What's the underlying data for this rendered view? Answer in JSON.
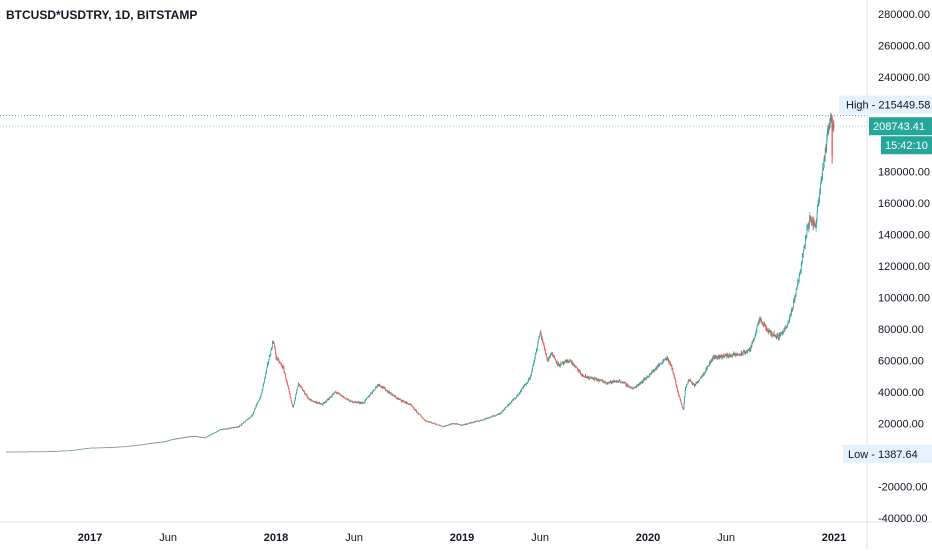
{
  "chart_data": {
    "type": "candlestick",
    "title": "BTCUSD*USDTRY, 1D, BITSTAMP",
    "y_axis": {
      "ticks": [
        "-40000.00",
        "-20000.00",
        "20000.00",
        "40000.00",
        "60000.00",
        "80000.00",
        "100000.00",
        "120000.00",
        "140000.00",
        "160000.00",
        "180000.00",
        "240000.00",
        "260000.00",
        "280000.00"
      ],
      "tick_values": [
        -40000,
        -20000,
        20000,
        40000,
        60000,
        80000,
        100000,
        120000,
        140000,
        160000,
        180000,
        240000,
        260000,
        280000
      ],
      "range": [
        -40000,
        285000
      ]
    },
    "x_axis": {
      "labels": [
        "2017",
        "Jun",
        "2018",
        "Jun",
        "2019",
        "Jun",
        "2020",
        "Jun",
        "2021"
      ],
      "label_years": [
        2017.0,
        2017.42,
        2018.0,
        2018.42,
        2019.0,
        2019.42,
        2020.0,
        2020.42,
        2021.0
      ],
      "range": [
        2016.55,
        2021.1
      ]
    },
    "price_series": {
      "x": [
        2016.55,
        2016.8,
        2016.9,
        2017.0,
        2017.1,
        2017.2,
        2017.3,
        2017.4,
        2017.45,
        2017.55,
        2017.62,
        2017.7,
        2017.8,
        2017.87,
        2017.92,
        2017.96,
        2017.985,
        2018.0,
        2018.04,
        2018.09,
        2018.12,
        2018.18,
        2018.25,
        2018.32,
        2018.4,
        2018.47,
        2018.55,
        2018.65,
        2018.72,
        2018.8,
        2018.85,
        2018.9,
        2018.95,
        2019.0,
        2019.1,
        2019.2,
        2019.3,
        2019.37,
        2019.42,
        2019.46,
        2019.48,
        2019.52,
        2019.58,
        2019.65,
        2019.72,
        2019.78,
        2019.85,
        2019.92,
        2020.0,
        2020.05,
        2020.1,
        2020.13,
        2020.16,
        2020.19,
        2020.2,
        2020.22,
        2020.25,
        2020.3,
        2020.35,
        2020.42,
        2020.5,
        2020.55,
        2020.6,
        2020.65,
        2020.7,
        2020.75,
        2020.78,
        2020.82,
        2020.85,
        2020.87,
        2020.9,
        2020.93,
        2020.96,
        2020.98,
        2021.0
      ],
      "close": [
        2000,
        2300,
        3000,
        4500,
        4800,
        5500,
        7000,
        8500,
        10000,
        12000,
        11000,
        16000,
        18000,
        25000,
        38000,
        60000,
        73000,
        62000,
        55000,
        30000,
        45000,
        35000,
        32000,
        40000,
        34000,
        33000,
        45000,
        36000,
        32000,
        22000,
        20000,
        18000,
        20000,
        19000,
        22000,
        26000,
        38000,
        50000,
        78000,
        60000,
        65000,
        57000,
        60000,
        50000,
        48000,
        46000,
        47000,
        42000,
        50000,
        56000,
        62000,
        55000,
        40000,
        28000,
        42000,
        48000,
        44000,
        52000,
        62000,
        63000,
        64000,
        67000,
        86000,
        78000,
        75000,
        82000,
        95000,
        118000,
        140000,
        150000,
        145000,
        175000,
        198000,
        215449,
        208743
      ]
    },
    "high": {
      "label": "High",
      "value": "215449.58",
      "numeric": 215449.58
    },
    "low": {
      "label": "Low",
      "value": "1387.64",
      "numeric": 1387.64
    },
    "last_price": {
      "value": "208743.41",
      "numeric": 208743.41
    },
    "countdown": "15:42:10",
    "colors": {
      "up": "#26a69a",
      "down": "#ef5350",
      "high_bg": "#e3f2fd",
      "last_bg": "#26a69a",
      "text": "#131722"
    }
  }
}
